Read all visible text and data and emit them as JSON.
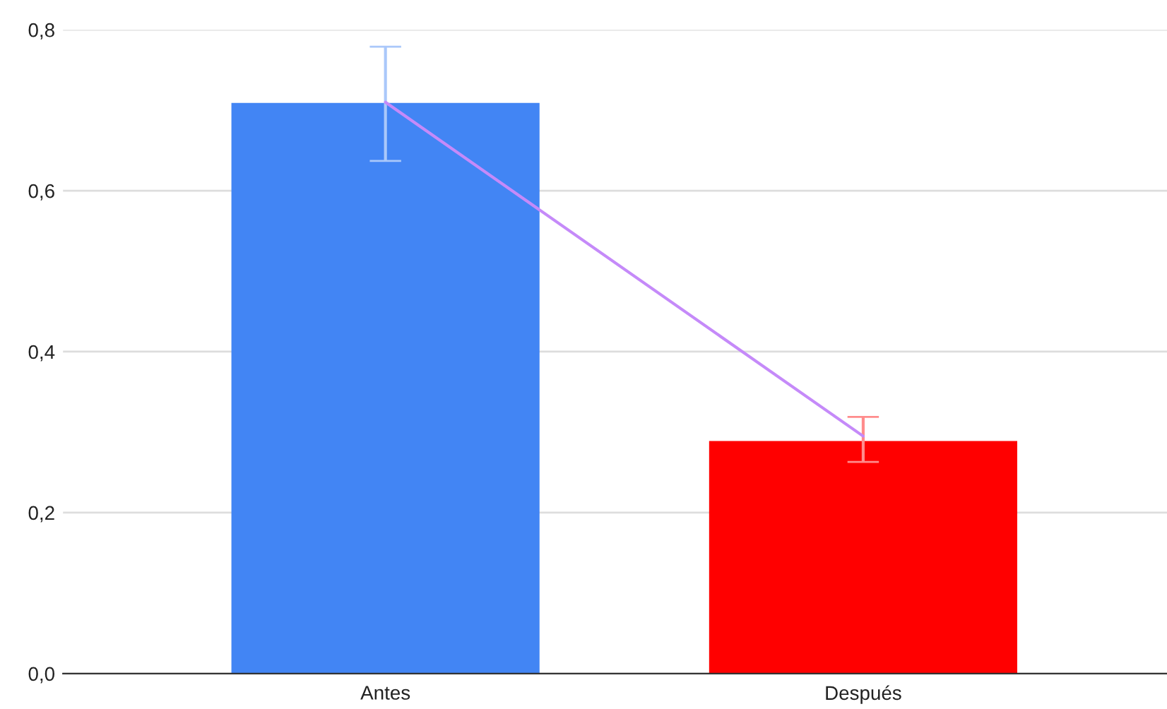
{
  "chart_data": {
    "type": "bar",
    "categories": [
      "Antes",
      "Después"
    ],
    "series": [
      {
        "colors": [
          "#4285f4",
          "#ff0000"
        ],
        "values": [
          0.709,
          0.289
        ],
        "errors": [
          [
            0.637,
            0.779
          ],
          [
            0.263,
            0.319
          ]
        ]
      },
      {
        "type": "line",
        "color": "#c58af9",
        "values": [
          0.71,
          0.295
        ]
      }
    ],
    "ylim": [
      0,
      0.8
    ],
    "yticks": [
      {
        "value": 0,
        "label": "0,0"
      },
      {
        "value": 0.2,
        "label": "0,2"
      },
      {
        "value": 0.4,
        "label": "0,4"
      },
      {
        "value": 0.6,
        "label": "0,6"
      },
      {
        "value": 0.8,
        "label": "0,8"
      }
    ],
    "grid": "y",
    "legend": false
  }
}
